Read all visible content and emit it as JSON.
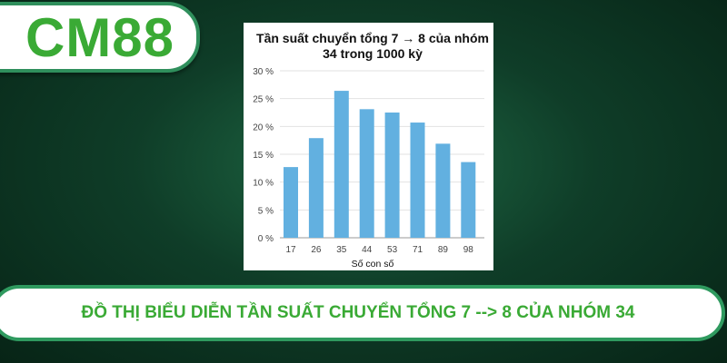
{
  "logo": {
    "text": "CM88"
  },
  "banner": {
    "text": "ĐỒ THỊ BIỂU DIỄN TẦN SUẤT CHUYỂN TỔNG 7 --> 8 CỦA NHÓM 34"
  },
  "colors": {
    "bar": "#62b0e0",
    "brand_green": "#3aaa35"
  },
  "chart_data": {
    "type": "bar",
    "title_lines": [
      "Tần suất chuyển tổng 7 → 8 của nhóm",
      "34 trong 1000 kỳ"
    ],
    "xlabel": "Số con số",
    "ylabel": "",
    "categories": [
      "17",
      "26",
      "35",
      "44",
      "53",
      "71",
      "89",
      "98"
    ],
    "values": [
      12.7,
      17.9,
      26.4,
      23.1,
      22.5,
      20.7,
      16.9,
      13.6
    ],
    "ylim": [
      0,
      30
    ],
    "yticks": [
      0,
      5,
      10,
      15,
      20,
      25,
      30
    ],
    "ytick_suffix": " %",
    "grid": true
  }
}
